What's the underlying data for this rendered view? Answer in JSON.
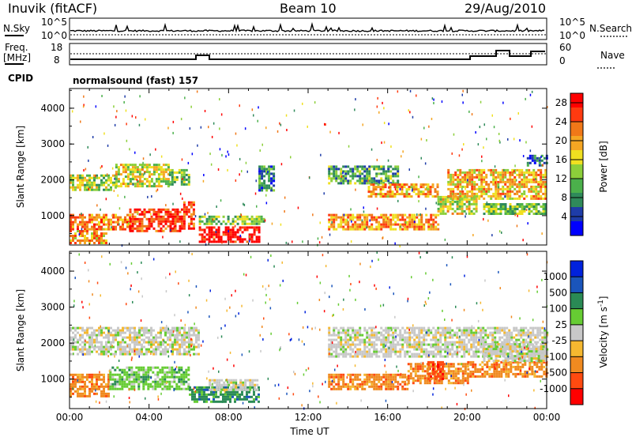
{
  "header": {
    "station": "Inuvik  (fitACF)",
    "beam": "Beam 10",
    "date": "29/Aug/2010"
  },
  "labels": {
    "nsky": "N.Sky",
    "nsearch": "N.Search",
    "freq_line1": "Freq.",
    "freq_line2": "[MHz]",
    "nave": "Nave",
    "cpid": "CPID",
    "cpid_value": "normalsound (fast) 157",
    "xlabel": "Time UT"
  },
  "status_panel": {
    "noise_left_ticks": [
      "10^5",
      "10^0"
    ],
    "noise_right_ticks": [
      "10^5",
      "10^0"
    ],
    "freq_left_ticks": [
      "18",
      "8"
    ],
    "nave_right_ticks": [
      "60",
      "0"
    ]
  },
  "colors": {
    "power": [
      "#0000ff",
      "#1e3ca8",
      "#2f8a5a",
      "#4bb04b",
      "#8ccf3a",
      "#f0e020",
      "#f5a623",
      "#f07818",
      "#ff3a10",
      "#ff0000"
    ],
    "velocity": [
      "#0022dd",
      "#1a55bb",
      "#2a8a55",
      "#66cc33",
      "#c8c8c8",
      "#f5b830",
      "#f08a20",
      "#ff4a10",
      "#ff0000"
    ]
  },
  "chart_data": [
    {
      "type": "heatmap",
      "name": "power",
      "ylabel": "Slant Range [km]",
      "xlabel": "",
      "xlim": [
        "00:00",
        "24:00"
      ],
      "ylim": [
        180,
        4550
      ],
      "x_ticks": [
        "00:00",
        "04:00",
        "08:00",
        "12:00",
        "16:00",
        "20:00",
        "00:00"
      ],
      "y_ticks": [
        1000,
        2000,
        3000,
        4000
      ],
      "colorbar_label": "Power [dB]",
      "colorbar_ticks": [
        "4",
        "8",
        "12",
        "16",
        "20",
        "24",
        "28"
      ],
      "colorbar_range": [
        0,
        30
      ],
      "regions": [
        {
          "t0": 0.0,
          "t1": 2.3,
          "r0": 1700,
          "r1": 2150,
          "level": 14
        },
        {
          "t0": 2.3,
          "t1": 5.0,
          "r0": 1850,
          "r1": 2450,
          "level": 16
        },
        {
          "t0": 5.0,
          "t1": 6.0,
          "r0": 1900,
          "r1": 2300,
          "level": 12
        },
        {
          "t0": 0.0,
          "t1": 3.0,
          "r0": 600,
          "r1": 1050,
          "level": 22
        },
        {
          "t0": 3.0,
          "t1": 5.6,
          "r0": 550,
          "r1": 1200,
          "level": 26
        },
        {
          "t0": 5.6,
          "t1": 6.3,
          "r0": 650,
          "r1": 1400,
          "level": 25
        },
        {
          "t0": 0.0,
          "t1": 1.8,
          "r0": 250,
          "r1": 600,
          "level": 20
        },
        {
          "t0": 6.5,
          "t1": 9.5,
          "r0": 250,
          "r1": 700,
          "level": 29
        },
        {
          "t0": 6.5,
          "t1": 9.8,
          "r0": 800,
          "r1": 1000,
          "level": 12
        },
        {
          "t0": 9.5,
          "t1": 10.3,
          "r0": 1700,
          "r1": 2400,
          "level": 8
        },
        {
          "t0": 13.0,
          "t1": 16.5,
          "r0": 1900,
          "r1": 2400,
          "level": 10
        },
        {
          "t0": 15.0,
          "t1": 18.5,
          "r0": 1550,
          "r1": 1900,
          "level": 20
        },
        {
          "t0": 13.0,
          "t1": 18.5,
          "r0": 650,
          "r1": 1050,
          "level": 21
        },
        {
          "t0": 18.5,
          "t1": 20.5,
          "r0": 1050,
          "r1": 1550,
          "level": 16
        },
        {
          "t0": 19.0,
          "t1": 24.0,
          "r0": 1500,
          "r1": 2300,
          "level": 19
        },
        {
          "t0": 20.8,
          "t1": 24.0,
          "r0": 1050,
          "r1": 1350,
          "level": 12
        },
        {
          "t0": 23.0,
          "t1": 24.0,
          "r0": 2400,
          "r1": 2700,
          "level": 6
        }
      ]
    },
    {
      "type": "heatmap",
      "name": "velocity",
      "ylabel": "Slant Range [km]",
      "xlabel": "Time UT",
      "xlim": [
        "00:00",
        "24:00"
      ],
      "ylim": [
        180,
        4550
      ],
      "x_ticks": [
        "00:00",
        "04:00",
        "08:00",
        "12:00",
        "16:00",
        "20:00",
        "00:00"
      ],
      "y_ticks": [
        1000,
        2000,
        3000,
        4000
      ],
      "colorbar_label": "Velocity [m s^-1]",
      "colorbar_ticks": [
        "1000",
        "500",
        "100",
        "25",
        "-25",
        "-100",
        "-500",
        "-1000"
      ],
      "regions": [
        {
          "t0": 0.0,
          "t1": 6.5,
          "r0": 1700,
          "r1": 2450,
          "class": 4
        },
        {
          "t0": 0.0,
          "t1": 2.0,
          "r0": 550,
          "r1": 1150,
          "class": 6
        },
        {
          "t0": 2.0,
          "t1": 6.0,
          "r0": 700,
          "r1": 1350,
          "class": 3
        },
        {
          "t0": 6.0,
          "t1": 9.5,
          "r0": 350,
          "r1": 800,
          "class": 2
        },
        {
          "t0": 7.0,
          "t1": 9.5,
          "r0": 700,
          "r1": 1000,
          "class": 4
        },
        {
          "t0": 13.0,
          "t1": 24.0,
          "r0": 1650,
          "r1": 2450,
          "class": 4
        },
        {
          "t0": 13.0,
          "t1": 17.0,
          "r0": 750,
          "r1": 1150,
          "class": 6
        },
        {
          "t0": 17.0,
          "t1": 20.0,
          "r0": 900,
          "r1": 1450,
          "class": 6
        },
        {
          "t0": 18.0,
          "t1": 18.8,
          "r0": 1000,
          "r1": 1500,
          "class": 7
        },
        {
          "t0": 20.0,
          "t1": 24.0,
          "r0": 1050,
          "r1": 1500,
          "class": 6
        },
        {
          "t0": 20.8,
          "t1": 24.0,
          "r0": 1500,
          "r1": 2000,
          "class": 4
        }
      ]
    }
  ]
}
